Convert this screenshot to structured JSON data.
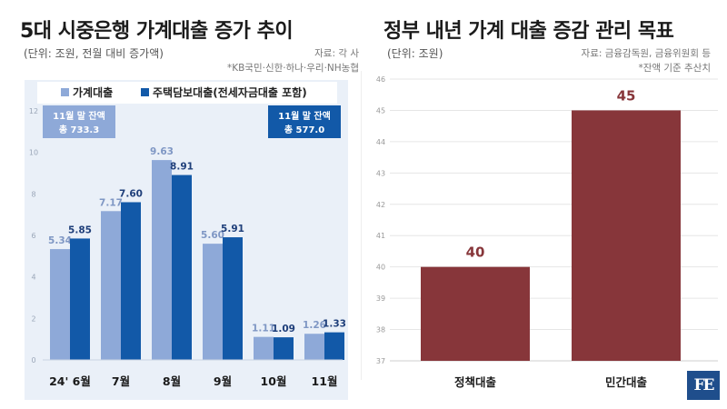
{
  "left": {
    "title": "5대 시중은행 가계대출 증가 추이",
    "unit": "(단위: 조원, 전월 대비 증가액)",
    "source_line1": "자료: 각 사",
    "source_line2": "*KB국민·신한·하나·우리·NH농협",
    "chart_data": {
      "type": "bar",
      "categories": [
        "24' 6월",
        "7월",
        "8월",
        "9월",
        "10월",
        "11월"
      ],
      "series": [
        {
          "name": "가계대출",
          "values": [
            5.34,
            7.17,
            9.63,
            5.6,
            1.11,
            1.26
          ],
          "labels": [
            "5.34",
            "7.17",
            "9.63",
            "5.60",
            "1.11",
            "1.26"
          ],
          "color": "#8ea9d8"
        },
        {
          "name": "주택담보대출(전세자금대출 포함)",
          "values": [
            5.85,
            7.6,
            8.91,
            5.91,
            1.09,
            1.33
          ],
          "labels": [
            "5.85",
            "7.60",
            "8.91",
            "5.91",
            "1.09",
            "1.33"
          ],
          "color": "#1259a8"
        }
      ],
      "ylim": [
        0,
        12
      ],
      "yticks": [
        "0",
        "2",
        "4",
        "6",
        "8",
        "10",
        "12"
      ],
      "grid": false,
      "legend": "top",
      "annotations": [
        {
          "line1": "11월 말 잔액",
          "line2": "총 733.3",
          "bg": "#8ea9d8"
        },
        {
          "line1": "11월 말 잔액",
          "line2": "총 577.0",
          "bg": "#1259a8"
        }
      ]
    }
  },
  "right": {
    "title": "정부 내년 가계 대출 증감 관리 목표",
    "unit": "(단위: 조원)",
    "source_line1": "자료: 금융감독원, 금융위원회 등",
    "source_line2": "*잔액 기준 추산치",
    "chart_data": {
      "type": "bar",
      "categories": [
        "정책대출",
        "민간대출"
      ],
      "values": [
        40,
        45
      ],
      "labels": [
        "40",
        "45"
      ],
      "ylim": [
        37,
        46
      ],
      "yticks": [
        "37",
        "38",
        "39",
        "40",
        "41",
        "42",
        "43",
        "44",
        "45",
        "46"
      ],
      "grid": true,
      "color": "#87363a"
    }
  },
  "logo": {
    "text": "FE"
  }
}
